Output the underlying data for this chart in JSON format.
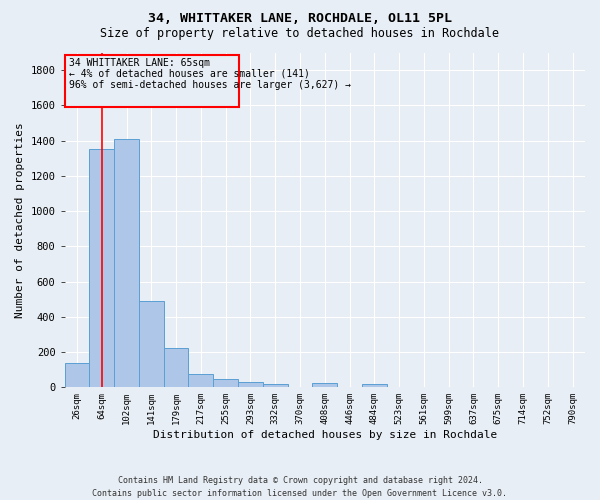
{
  "title1": "34, WHITTAKER LANE, ROCHDALE, OL11 5PL",
  "title2": "Size of property relative to detached houses in Rochdale",
  "xlabel": "Distribution of detached houses by size in Rochdale",
  "ylabel": "Number of detached properties",
  "bar_color": "#aec6e8",
  "bar_edge_color": "#5a9fd4",
  "background_color": "#e8eef5",
  "grid_color": "#ffffff",
  "categories": [
    "26sqm",
    "64sqm",
    "102sqm",
    "141sqm",
    "179sqm",
    "217sqm",
    "255sqm",
    "293sqm",
    "332sqm",
    "370sqm",
    "408sqm",
    "446sqm",
    "484sqm",
    "523sqm",
    "561sqm",
    "599sqm",
    "637sqm",
    "675sqm",
    "714sqm",
    "752sqm",
    "790sqm"
  ],
  "values": [
    140,
    1355,
    1410,
    490,
    225,
    75,
    47,
    30,
    17,
    0,
    22,
    0,
    17,
    0,
    0,
    0,
    0,
    0,
    0,
    0,
    0
  ],
  "ylim": [
    0,
    1900
  ],
  "yticks": [
    0,
    200,
    400,
    600,
    800,
    1000,
    1200,
    1400,
    1600,
    1800
  ],
  "annotation_text_line1": "34 WHITTAKER LANE: 65sqm",
  "annotation_text_line2": "← 4% of detached houses are smaller (141)",
  "annotation_text_line3": "96% of semi-detached houses are larger (3,627) →",
  "footer_line1": "Contains HM Land Registry data © Crown copyright and database right 2024.",
  "footer_line2": "Contains public sector information licensed under the Open Government Licence v3.0."
}
